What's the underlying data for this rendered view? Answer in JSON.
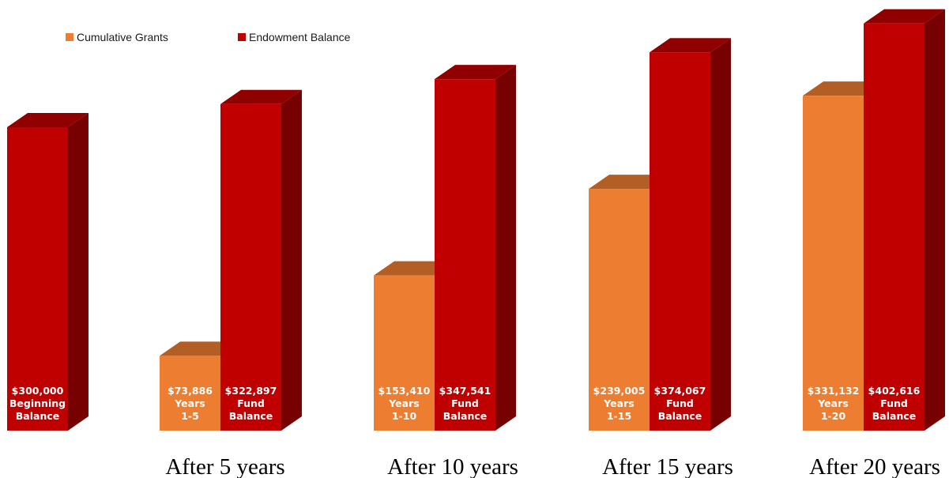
{
  "chart_data": {
    "type": "bar",
    "style": "3d-clustered-column",
    "categories": [
      "",
      "After 5 years",
      "After 10 years",
      "After 15 years",
      "After 20 years"
    ],
    "series": [
      {
        "name": "Cumulative Grants",
        "color": "#ED7D31",
        "values": [
          null,
          73886,
          153410,
          239005,
          331132
        ],
        "labels": [
          null,
          [
            "$73,886",
            "Years",
            "1-5"
          ],
          [
            "$153,410",
            "Years",
            "1-10"
          ],
          [
            "$239,005",
            "Years",
            "1-15"
          ],
          [
            "$331,132",
            "Years",
            "1-20"
          ]
        ]
      },
      {
        "name": "Endowment Balance",
        "color": "#C00000",
        "values": [
          300000,
          322897,
          347541,
          374067,
          402616
        ],
        "labels": [
          [
            "$300,000",
            "Beginning",
            "Balance"
          ],
          [
            "$322,897",
            "Fund",
            "Balance"
          ],
          [
            "$347,541",
            "Fund",
            "Balance"
          ],
          [
            "$374,067",
            "Fund",
            "Balance"
          ],
          [
            "$402,616",
            "Fund",
            "Balance"
          ]
        ]
      }
    ],
    "legend": "top-left",
    "grid": false,
    "axes_visible": false
  }
}
